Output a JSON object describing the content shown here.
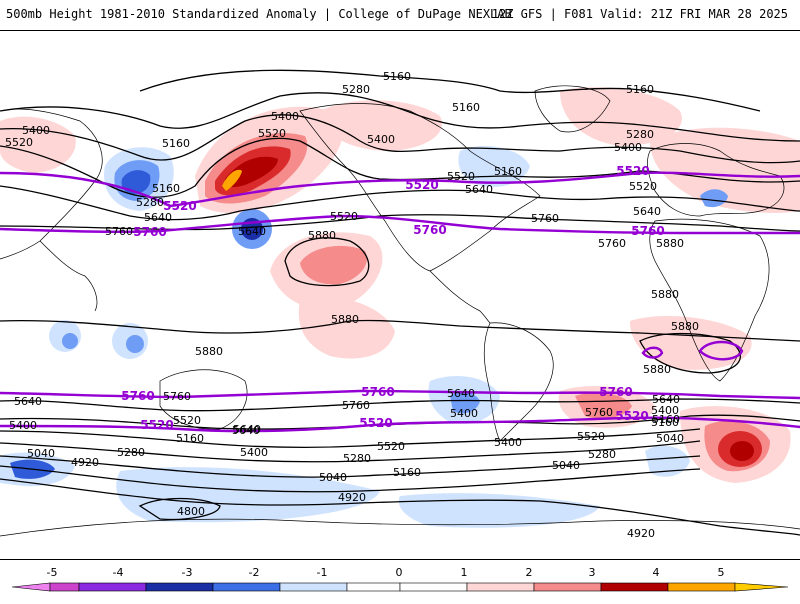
{
  "header": {
    "title_left": "500mb Height 1981-2010 Standardized Anomaly | College of DuPage NEXLAB",
    "title_right": "12Z GFS | F081 Valid: 21Z FRI MAR 28 2025"
  },
  "colors": {
    "contour_black": "#000000",
    "contour_purple": "#9400d3",
    "pos_1": "#ffd6d6",
    "pos_2": "#f58b8b",
    "pos_3": "#d92b2b",
    "pos_4": "#b00000",
    "pos_5": "#ffa500",
    "neg_1": "#cfe3ff",
    "neg_2": "#6f9cf5",
    "neg_3": "#2f5bd9",
    "neg_4": "#1a2fa6",
    "neg_5": "#8a2be2"
  },
  "contour_labels": {
    "black": [
      "5160",
      "5160",
      "5280",
      "5400",
      "5520",
      "5400",
      "5160",
      "5400",
      "5160",
      "5280",
      "5400",
      "5520",
      "5160",
      "5280",
      "5640",
      "5760",
      "5640",
      "5880",
      "5520",
      "5640",
      "5160",
      "5520",
      "5520",
      "5640",
      "5760",
      "5880",
      "5880",
      "5880",
      "5880",
      "5880",
      "5880",
      "5640",
      "5760",
      "5520",
      "5640",
      "5400",
      "5280",
      "5160",
      "5040",
      "4920",
      "4800",
      "4920",
      "5640",
      "5400",
      "5520",
      "5400",
      "5280",
      "5160",
      "5040",
      "5640",
      "5760",
      "5520",
      "5400",
      "5280",
      "5160",
      "5040",
      "5760",
      "5640",
      "5400",
      "5160",
      "5040",
      "4920",
      "5400",
      "5520",
      "5760",
      "5640",
      "5160",
      "5400",
      "5040"
    ],
    "purple": [
      "5520",
      "5760",
      "5520",
      "5760",
      "5520",
      "5760",
      "5760",
      "5520",
      "5760",
      "5520",
      "5760",
      "5520"
    ]
  },
  "colorbar": {
    "ticks": [
      "-5",
      "-4",
      "-3",
      "-2",
      "-1",
      "0",
      "1",
      "2",
      "3",
      "4",
      "5"
    ]
  }
}
